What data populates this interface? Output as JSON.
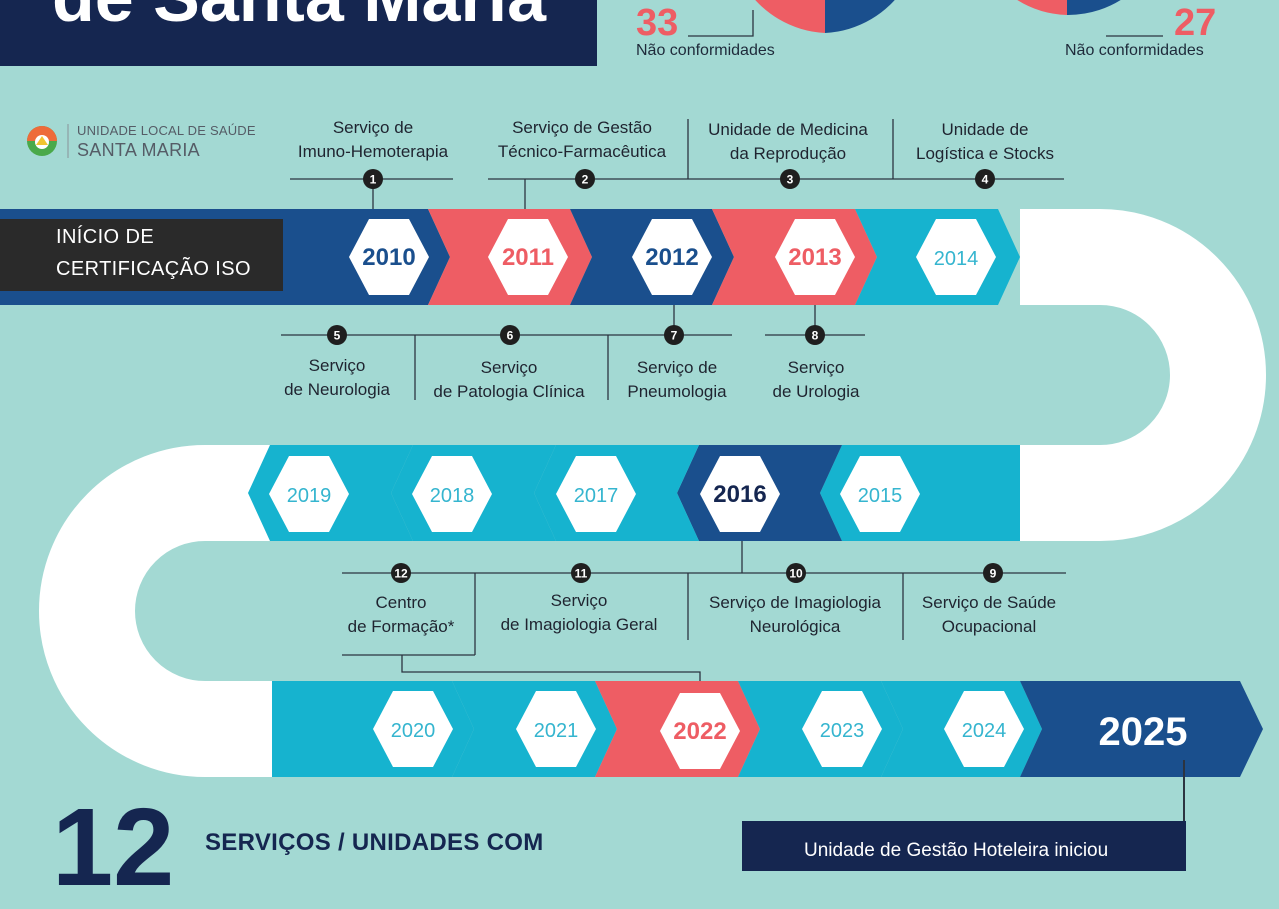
{
  "header": {
    "title": "de Santa Maria"
  },
  "stats": [
    {
      "count": "33",
      "label": "Não conformidades"
    },
    {
      "count": "27",
      "label": "Não conformidades"
    }
  ],
  "logo": {
    "line1": "UNIDADE LOCAL DE SAÚDE",
    "line2": "SANTA MARIA"
  },
  "iso_label": {
    "line1": "INÍCIO DE",
    "line2": "CERTIFICAÇÃO ISO"
  },
  "years": [
    "2010",
    "2011",
    "2012",
    "2013",
    "2014",
    "2015",
    "2016",
    "2017",
    "2018",
    "2019",
    "2020",
    "2021",
    "2022",
    "2023",
    "2024",
    "2025"
  ],
  "milestones": [
    {
      "number": "1",
      "line1": "Serviço de",
      "line2": "Imuno-Hemoterapia"
    },
    {
      "number": "2",
      "line1": "Serviço de Gestão",
      "line2": "Técnico-Farmacêutica"
    },
    {
      "number": "3",
      "line1": "Unidade de Medicina",
      "line2": "da Reprodução"
    },
    {
      "number": "4",
      "line1": "Unidade de",
      "line2": "Logística e Stocks"
    },
    {
      "number": "5",
      "line1": "Serviço",
      "line2": "de Neurologia"
    },
    {
      "number": "6",
      "line1": "Serviço",
      "line2": "de Patologia Clínica"
    },
    {
      "number": "7",
      "line1": "Serviço de",
      "line2": "Pneumologia"
    },
    {
      "number": "8",
      "line1": "Serviço",
      "line2": "de Urologia"
    },
    {
      "number": "9",
      "line1": "Serviço de Saúde",
      "line2": "Ocupacional"
    },
    {
      "number": "10",
      "line1": "Serviço de Imagiologia",
      "line2": "Neurológica"
    },
    {
      "number": "11",
      "line1": "Serviço",
      "line2": "de Imagiologia Geral"
    },
    {
      "number": "12",
      "line1": "Centro",
      "line2": "de Formação*"
    }
  ],
  "bottom": {
    "big_number": "12",
    "text": "SERVIÇOS / UNIDADES COM",
    "note": "Unidade de Gestão Hoteleira iniciou"
  },
  "colors": {
    "background": "#a3d9d3",
    "navy": "#152650",
    "dark_blue": "#1a4f8d",
    "cyan": "#16b3cf",
    "coral": "#ee5d64",
    "light_year_text": "#35b5cf"
  }
}
